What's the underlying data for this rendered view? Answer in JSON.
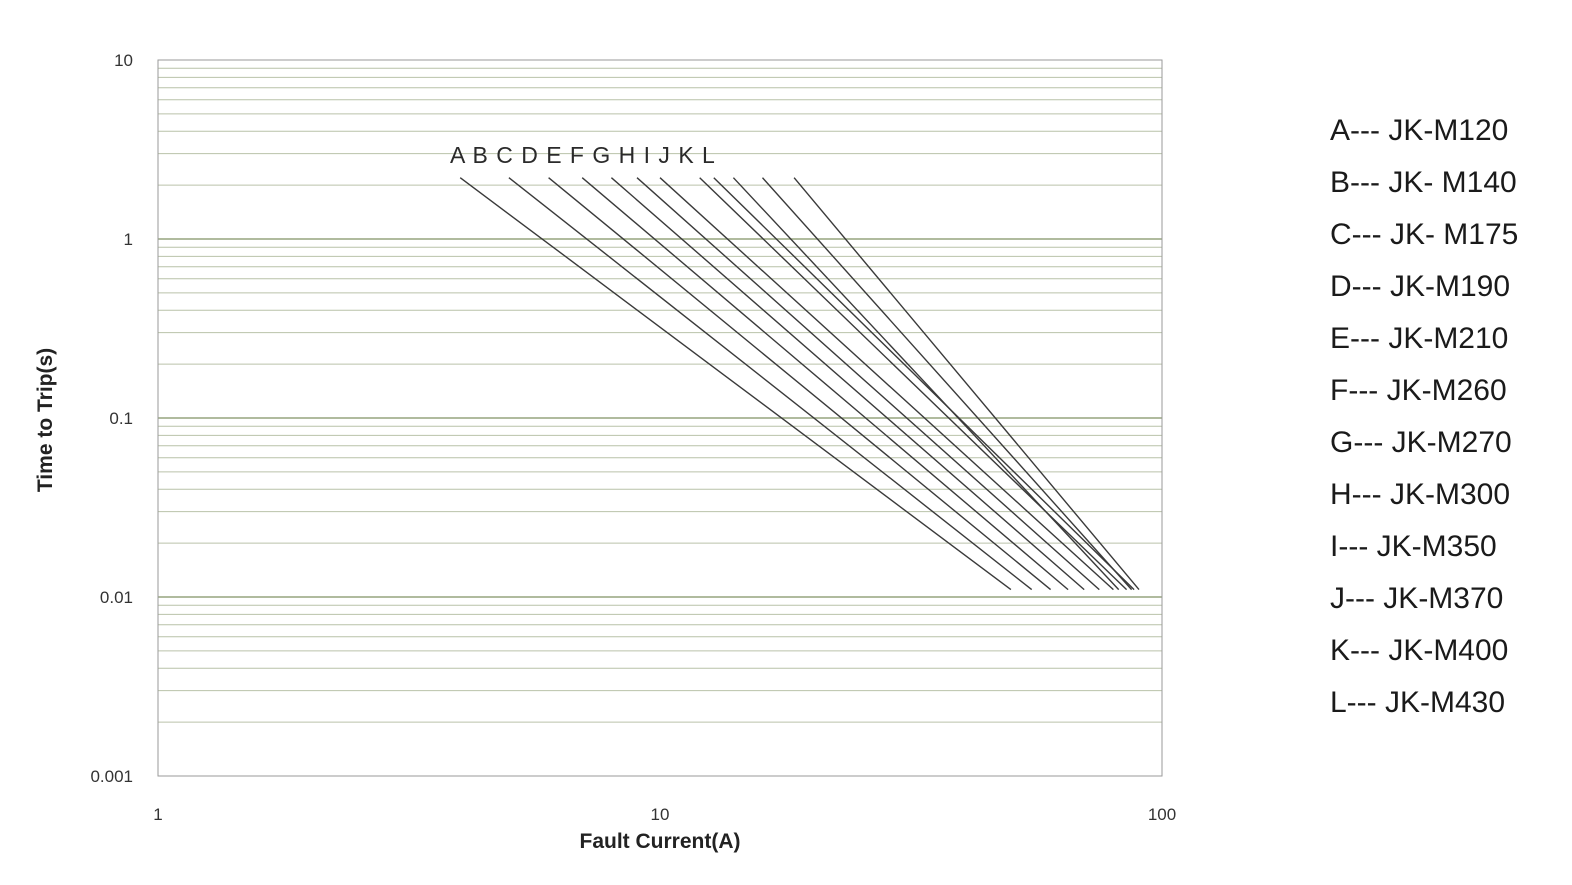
{
  "chart_data": {
    "type": "line",
    "title": "",
    "xlabel": "Fault Current(A)",
    "ylabel": "Time to Trip(s)",
    "x_scale": "log",
    "y_scale": "log",
    "xlim": [
      1,
      100
    ],
    "ylim": [
      0.001,
      10
    ],
    "x_ticks": [
      "1",
      "10",
      "100"
    ],
    "y_ticks": [
      "10",
      "1",
      "0.1",
      "0.01",
      "0.001"
    ],
    "grid": true,
    "grid_colors": {
      "vertical_top": "#f0c020",
      "vertical_bottom": "#b0303a",
      "horizontal": "#8a9a70"
    },
    "line_color": "#3a3a3a",
    "legend_position": "right",
    "series": [
      {
        "name": "A",
        "points": [
          [
            4.0,
            2.2
          ],
          [
            50,
            0.011
          ]
        ]
      },
      {
        "name": "B",
        "points": [
          [
            5.0,
            2.2
          ],
          [
            55,
            0.011
          ]
        ]
      },
      {
        "name": "C",
        "points": [
          [
            6.0,
            2.2
          ],
          [
            60,
            0.011
          ]
        ]
      },
      {
        "name": "D",
        "points": [
          [
            7.0,
            2.2
          ],
          [
            65,
            0.011
          ]
        ]
      },
      {
        "name": "E",
        "points": [
          [
            8.0,
            2.2
          ],
          [
            70,
            0.011
          ]
        ]
      },
      {
        "name": "F",
        "points": [
          [
            9.0,
            2.2
          ],
          [
            75,
            0.011
          ]
        ]
      },
      {
        "name": "G",
        "points": [
          [
            10.0,
            2.2
          ],
          [
            80,
            0.011
          ]
        ]
      },
      {
        "name": "H",
        "points": [
          [
            12.0,
            2.2
          ],
          [
            85,
            0.011
          ]
        ]
      },
      {
        "name": "I",
        "points": [
          [
            12.8,
            2.2
          ],
          [
            88,
            0.011
          ]
        ]
      },
      {
        "name": "J",
        "points": [
          [
            14.0,
            2.2
          ],
          [
            82,
            0.011
          ]
        ]
      },
      {
        "name": "K",
        "points": [
          [
            16.0,
            2.2
          ],
          [
            87,
            0.011
          ]
        ]
      },
      {
        "name": "L",
        "points": [
          [
            18.5,
            2.2
          ],
          [
            90,
            0.011
          ]
        ]
      }
    ],
    "curve_labels": "A B  C D E F  G H I J K L",
    "legend": [
      "A--- JK-M120",
      "B--- JK- M140",
      "C--- JK- M175",
      "D--- JK-M190",
      "E--- JK-M210",
      "F--- JK-M260",
      "G--- JK-M270",
      "H--- JK-M300",
      "I--- JK-M350",
      "J--- JK-M370",
      "K--- JK-M400",
      "L--- JK-M430"
    ]
  }
}
